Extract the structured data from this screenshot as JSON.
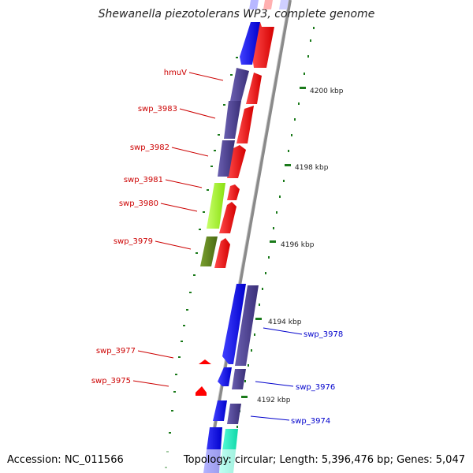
{
  "title": "Shewanella piezotolerans WP3, complete genome",
  "accession": "Accession: NC_011566",
  "topology": "Topology: circular; Length: 5,396,476 bp; Genes: 5,047",
  "ruler": [
    "4200 kbp",
    "4198 kbp",
    "4196 kbp",
    "4194 kbp",
    "4192 kbp"
  ],
  "labels_left": [
    "hmuV",
    "swp_3983",
    "swp_3982",
    "swp_3981",
    "swp_3980",
    "swp_3979",
    "swp_3977",
    "swp_3975"
  ],
  "labels_right": [
    "swp_3978",
    "swp_3976",
    "swp_3974"
  ],
  "colors": {
    "forward": "#ff0000",
    "reverse": "#0000ff",
    "cog_purple": "#4b3f8f",
    "cog_lime": "#a6ff2a",
    "cog_olive": "#5e7f1e",
    "cog_teal": "#22ffcc",
    "backbone": "#888888",
    "tick": "#1a7a1a"
  }
}
